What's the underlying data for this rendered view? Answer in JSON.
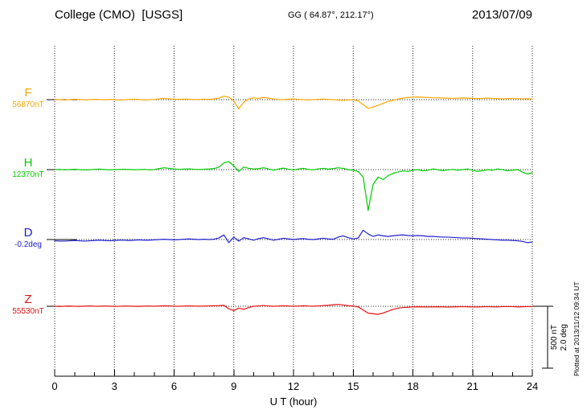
{
  "header": {
    "station": "College (CMO)  [USGS]",
    "gg": "GG ( 64.87°, 212.17°)",
    "date": "2013/07/09"
  },
  "axis": {
    "xlabel": "U T (hour)"
  },
  "scalebar": {
    "nt_label": "500 nT",
    "deg_label": "2.0 deg"
  },
  "plotted_at": "Plotted at 2013/11/12 09:34 UT",
  "traces": [
    {
      "label": "F",
      "value_label": "56870nT",
      "color": "#FFA500"
    },
    {
      "label": "H",
      "value_label": "12370nT",
      "color": "#00CC00"
    },
    {
      "label": "D",
      "value_label": "-0.2deg",
      "color": "#2020CC"
    },
    {
      "label": "Z",
      "value_label": "55530nT",
      "color": "#E81010"
    }
  ],
  "chart_data": {
    "type": "line",
    "title": "College (CMO) [USGS]",
    "subtitle": "GG ( 64.87°, 212.17°)",
    "date": "2013/07/09",
    "xlabel": "U T (hour)",
    "x_start": 0,
    "x_end": 24,
    "x_step": 0.25,
    "x_ticks": [
      0,
      3,
      6,
      9,
      12,
      15,
      18,
      21,
      24
    ],
    "x_minor_tick_step": 1,
    "grid": "dotted-vertical-at-3h",
    "scale": {
      "nt_per_div": 500,
      "deg_per_div": 2.0
    },
    "series": [
      {
        "name": "F",
        "units": "nT",
        "baseline": 56870,
        "color": "#FFA500",
        "offsets": [
          2,
          0,
          -3,
          1,
          4,
          2,
          -2,
          0,
          3,
          1,
          -1,
          2,
          0,
          -3,
          -1,
          2,
          4,
          1,
          -2,
          0,
          2,
          6,
          10,
          7,
          4,
          2,
          5,
          3,
          1,
          2,
          4,
          3,
          5,
          12,
          28,
          20,
          -10,
          -75,
          -20,
          5,
          15,
          10,
          18,
          12,
          6,
          2,
          0,
          4,
          6,
          3,
          0,
          -2,
          0,
          3,
          5,
          2,
          0,
          -3,
          -5,
          -2,
          0,
          -10,
          -40,
          -70,
          -60,
          -45,
          -30,
          -15,
          -5,
          5,
          12,
          18,
          20,
          22,
          20,
          18,
          16,
          15,
          14,
          12,
          10,
          12,
          14,
          12,
          10,
          8,
          10,
          12,
          10,
          8,
          6,
          8,
          10,
          8,
          6,
          8,
          5
        ]
      },
      {
        "name": "H",
        "units": "nT",
        "baseline": 12370,
        "color": "#00CC00",
        "offsets": [
          0,
          2,
          -2,
          1,
          3,
          0,
          -3,
          -1,
          2,
          4,
          1,
          -2,
          0,
          2,
          3,
          1,
          -1,
          0,
          2,
          -2,
          0,
          8,
          15,
          10,
          5,
          2,
          4,
          6,
          3,
          1,
          3,
          5,
          8,
          20,
          55,
          65,
          30,
          -15,
          20,
          10,
          5,
          8,
          15,
          5,
          -5,
          5,
          12,
          3,
          -3,
          5,
          10,
          2,
          -2,
          6,
          10,
          4,
          8,
          15,
          10,
          0,
          -5,
          -15,
          -60,
          -330,
          -120,
          -60,
          -80,
          -50,
          -30,
          -20,
          -10,
          -15,
          -5,
          0,
          -10,
          -5,
          5,
          0,
          -8,
          -3,
          2,
          -5,
          0,
          5,
          -5,
          -15,
          -8,
          0,
          -5,
          5,
          0,
          -10,
          -5,
          0,
          -20,
          -35,
          -25
        ]
      },
      {
        "name": "D",
        "units": "deg",
        "baseline": -0.2,
        "color": "#2020CC",
        "offsets": [
          -0.04,
          -0.05,
          -0.05,
          -0.04,
          -0.03,
          -0.04,
          -0.05,
          -0.04,
          -0.03,
          -0.02,
          -0.03,
          -0.04,
          -0.03,
          -0.02,
          -0.02,
          -0.03,
          -0.02,
          -0.01,
          -0.02,
          -0.02,
          -0.01,
          0.0,
          0.01,
          0.0,
          -0.01,
          0.0,
          0.01,
          0.02,
          0.01,
          0.0,
          0.01,
          0.0,
          0.01,
          0.05,
          0.15,
          -0.1,
          0.08,
          -0.05,
          0.06,
          0.02,
          -0.02,
          0.03,
          0.06,
          0.02,
          -0.02,
          0.01,
          0.04,
          0.02,
          0.0,
          0.02,
          0.03,
          0.01,
          0.0,
          0.02,
          0.04,
          0.02,
          0.01,
          0.08,
          0.12,
          0.06,
          0.02,
          0.05,
          0.3,
          0.18,
          0.1,
          0.15,
          0.12,
          0.1,
          0.12,
          0.14,
          0.15,
          0.13,
          0.12,
          0.13,
          0.12,
          0.1,
          0.1,
          0.09,
          0.08,
          0.08,
          0.07,
          0.06,
          0.05,
          0.05,
          0.04,
          0.03,
          0.02,
          0.01,
          0.0,
          -0.01,
          -0.02,
          -0.02,
          -0.03,
          -0.04,
          -0.06,
          -0.1,
          -0.08
        ]
      },
      {
        "name": "Z",
        "units": "nT",
        "baseline": 55530,
        "color": "#E81010",
        "offsets": [
          0,
          -2,
          1,
          2,
          0,
          -1,
          1,
          3,
          1,
          0,
          2,
          1,
          -1,
          0,
          2,
          1,
          0,
          -1,
          1,
          2,
          0,
          2,
          4,
          3,
          1,
          0,
          2,
          3,
          2,
          1,
          2,
          3,
          4,
          5,
          8,
          -20,
          -35,
          -15,
          -25,
          -10,
          0,
          3,
          6,
          3,
          0,
          2,
          4,
          2,
          0,
          2,
          4,
          2,
          1,
          3,
          6,
          8,
          12,
          15,
          10,
          5,
          2,
          -5,
          -30,
          -55,
          -60,
          -65,
          -55,
          -40,
          -25,
          -15,
          -10,
          -8,
          -5,
          -4,
          -5,
          -6,
          -5,
          -4,
          -5,
          -6,
          -5,
          -4,
          -3,
          -4,
          -5,
          -6,
          -4,
          -3,
          -4,
          -5,
          -3,
          -2,
          -3,
          -5,
          -4,
          -3,
          -2
        ]
      }
    ]
  }
}
